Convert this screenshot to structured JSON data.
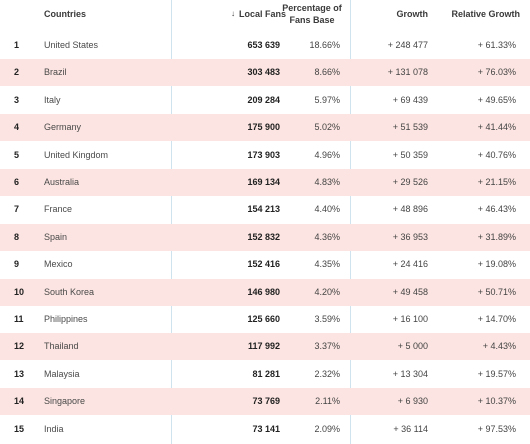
{
  "header": {
    "countries": "Countries",
    "local_fans": "Local Fans",
    "percentage": "Percentage of Fans Base",
    "growth": "Growth",
    "relative_growth": "Relative Growth",
    "sort_icon": "arrow-down-icon"
  },
  "rows": [
    {
      "rank": "1",
      "country": "United States",
      "local": "653 639",
      "percent": "18.66%",
      "growth": "+ 248 477",
      "relative": "+ 61.33%"
    },
    {
      "rank": "2",
      "country": "Brazil",
      "local": "303 483",
      "percent": "8.66%",
      "growth": "+ 131 078",
      "relative": "+ 76.03%"
    },
    {
      "rank": "3",
      "country": "Italy",
      "local": "209 284",
      "percent": "5.97%",
      "growth": "+ 69 439",
      "relative": "+ 49.65%"
    },
    {
      "rank": "4",
      "country": "Germany",
      "local": "175 900",
      "percent": "5.02%",
      "growth": "+ 51 539",
      "relative": "+ 41.44%"
    },
    {
      "rank": "5",
      "country": "United Kingdom",
      "local": "173 903",
      "percent": "4.96%",
      "growth": "+ 50 359",
      "relative": "+ 40.76%"
    },
    {
      "rank": "6",
      "country": "Australia",
      "local": "169 134",
      "percent": "4.83%",
      "growth": "+ 29 526",
      "relative": "+ 21.15%"
    },
    {
      "rank": "7",
      "country": "France",
      "local": "154 213",
      "percent": "4.40%",
      "growth": "+ 48 896",
      "relative": "+ 46.43%"
    },
    {
      "rank": "8",
      "country": "Spain",
      "local": "152 832",
      "percent": "4.36%",
      "growth": "+ 36 953",
      "relative": "+ 31.89%"
    },
    {
      "rank": "9",
      "country": "Mexico",
      "local": "152 416",
      "percent": "4.35%",
      "growth": "+ 24 416",
      "relative": "+ 19.08%"
    },
    {
      "rank": "10",
      "country": "South Korea",
      "local": "146 980",
      "percent": "4.20%",
      "growth": "+ 49 458",
      "relative": "+ 50.71%"
    },
    {
      "rank": "11",
      "country": "Philippines",
      "local": "125 660",
      "percent": "3.59%",
      "growth": "+ 16 100",
      "relative": "+ 14.70%"
    },
    {
      "rank": "12",
      "country": "Thailand",
      "local": "117 992",
      "percent": "3.37%",
      "growth": "+ 5 000",
      "relative": "+ 4.43%"
    },
    {
      "rank": "13",
      "country": "Malaysia",
      "local": "81 281",
      "percent": "2.32%",
      "growth": "+ 13 304",
      "relative": "+ 19.57%"
    },
    {
      "rank": "14",
      "country": "Singapore",
      "local": "73 769",
      "percent": "2.11%",
      "growth": "+ 6 930",
      "relative": "+ 10.37%"
    },
    {
      "rank": "15",
      "country": "India",
      "local": "73 141",
      "percent": "2.09%",
      "growth": "+ 36 114",
      "relative": "+ 97.53%"
    }
  ]
}
